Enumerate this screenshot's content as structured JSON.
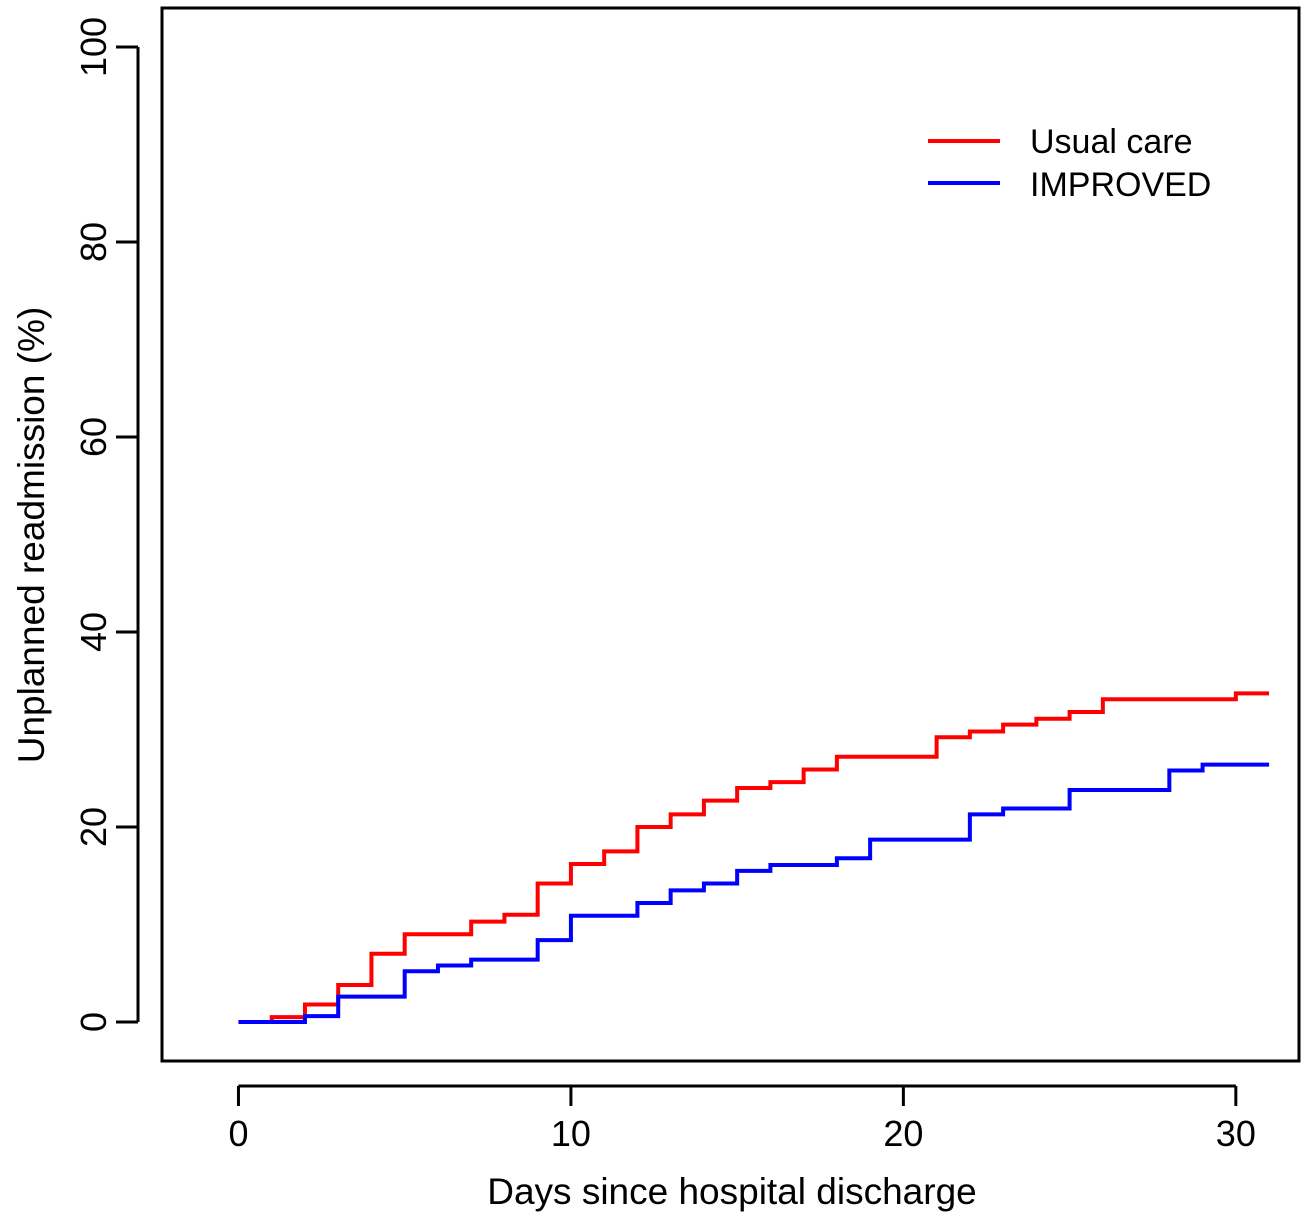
{
  "chart_data": {
    "type": "line",
    "title": "",
    "xlabel": "Days since hospital discharge",
    "ylabel": "Unplanned readmission (%)",
    "xlim": [
      -2.3,
      31.9
    ],
    "ylim": [
      -4,
      104
    ],
    "xticks": [
      0,
      10,
      20,
      30
    ],
    "yticks": [
      0,
      20,
      40,
      60,
      80,
      100
    ],
    "grid": false,
    "step": true,
    "legend_position": "top-right",
    "series": [
      {
        "name": "Usual care",
        "color": "#ff0000",
        "x": [
          0,
          1,
          2,
          3,
          4,
          5,
          7,
          8,
          9,
          10,
          11,
          12,
          13,
          14,
          15,
          16,
          17,
          18,
          21,
          22,
          23,
          24,
          25,
          26,
          30,
          31
        ],
        "y": [
          0,
          0.5,
          1.8,
          3.8,
          7.0,
          9.0,
          10.3,
          11.0,
          14.2,
          16.2,
          17.5,
          20.0,
          21.3,
          22.7,
          24.0,
          24.6,
          25.9,
          27.2,
          29.2,
          29.8,
          30.5,
          31.1,
          31.8,
          33.1,
          33.7,
          33.7
        ]
      },
      {
        "name": "IMPROVED",
        "color": "#0000ff",
        "x": [
          0,
          2,
          3,
          5,
          6,
          7,
          9,
          10,
          12,
          13,
          14,
          15,
          16,
          18,
          19,
          22,
          23,
          25,
          28,
          29,
          31
        ],
        "y": [
          0,
          0.6,
          2.6,
          5.2,
          5.8,
          6.4,
          8.4,
          10.9,
          12.2,
          13.5,
          14.2,
          15.5,
          16.1,
          16.8,
          18.7,
          21.3,
          21.9,
          23.8,
          25.8,
          26.4,
          26.4
        ]
      }
    ]
  }
}
